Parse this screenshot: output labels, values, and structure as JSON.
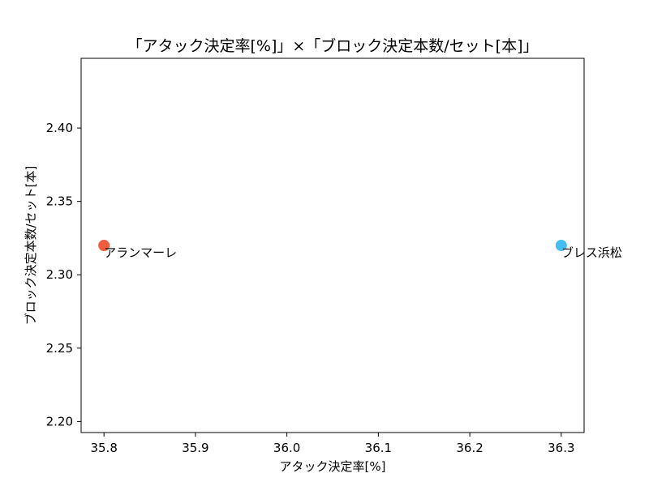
{
  "chart_data": {
    "type": "scatter",
    "title": "「アタック決定率[%]」×「ブロック決定本数/セット[本]」",
    "xlabel": "アタック決定率[%]",
    "ylabel": "ブロック決定本数/セット[本]",
    "xlim": [
      35.775,
      36.325
    ],
    "ylim": [
      2.1925,
      2.4475
    ],
    "x_ticks": [
      "35.8",
      "35.9",
      "36.0",
      "36.1",
      "36.2",
      "36.3"
    ],
    "y_ticks": [
      "2.20",
      "2.25",
      "2.30",
      "2.35",
      "2.40"
    ],
    "grid": false,
    "points": [
      {
        "label": "アランマーレ",
        "x": 35.8,
        "y": 2.32,
        "color": "#ef5c3f"
      },
      {
        "label": "ブレス浜松",
        "x": 36.3,
        "y": 2.32,
        "color": "#45bdf0"
      }
    ]
  }
}
